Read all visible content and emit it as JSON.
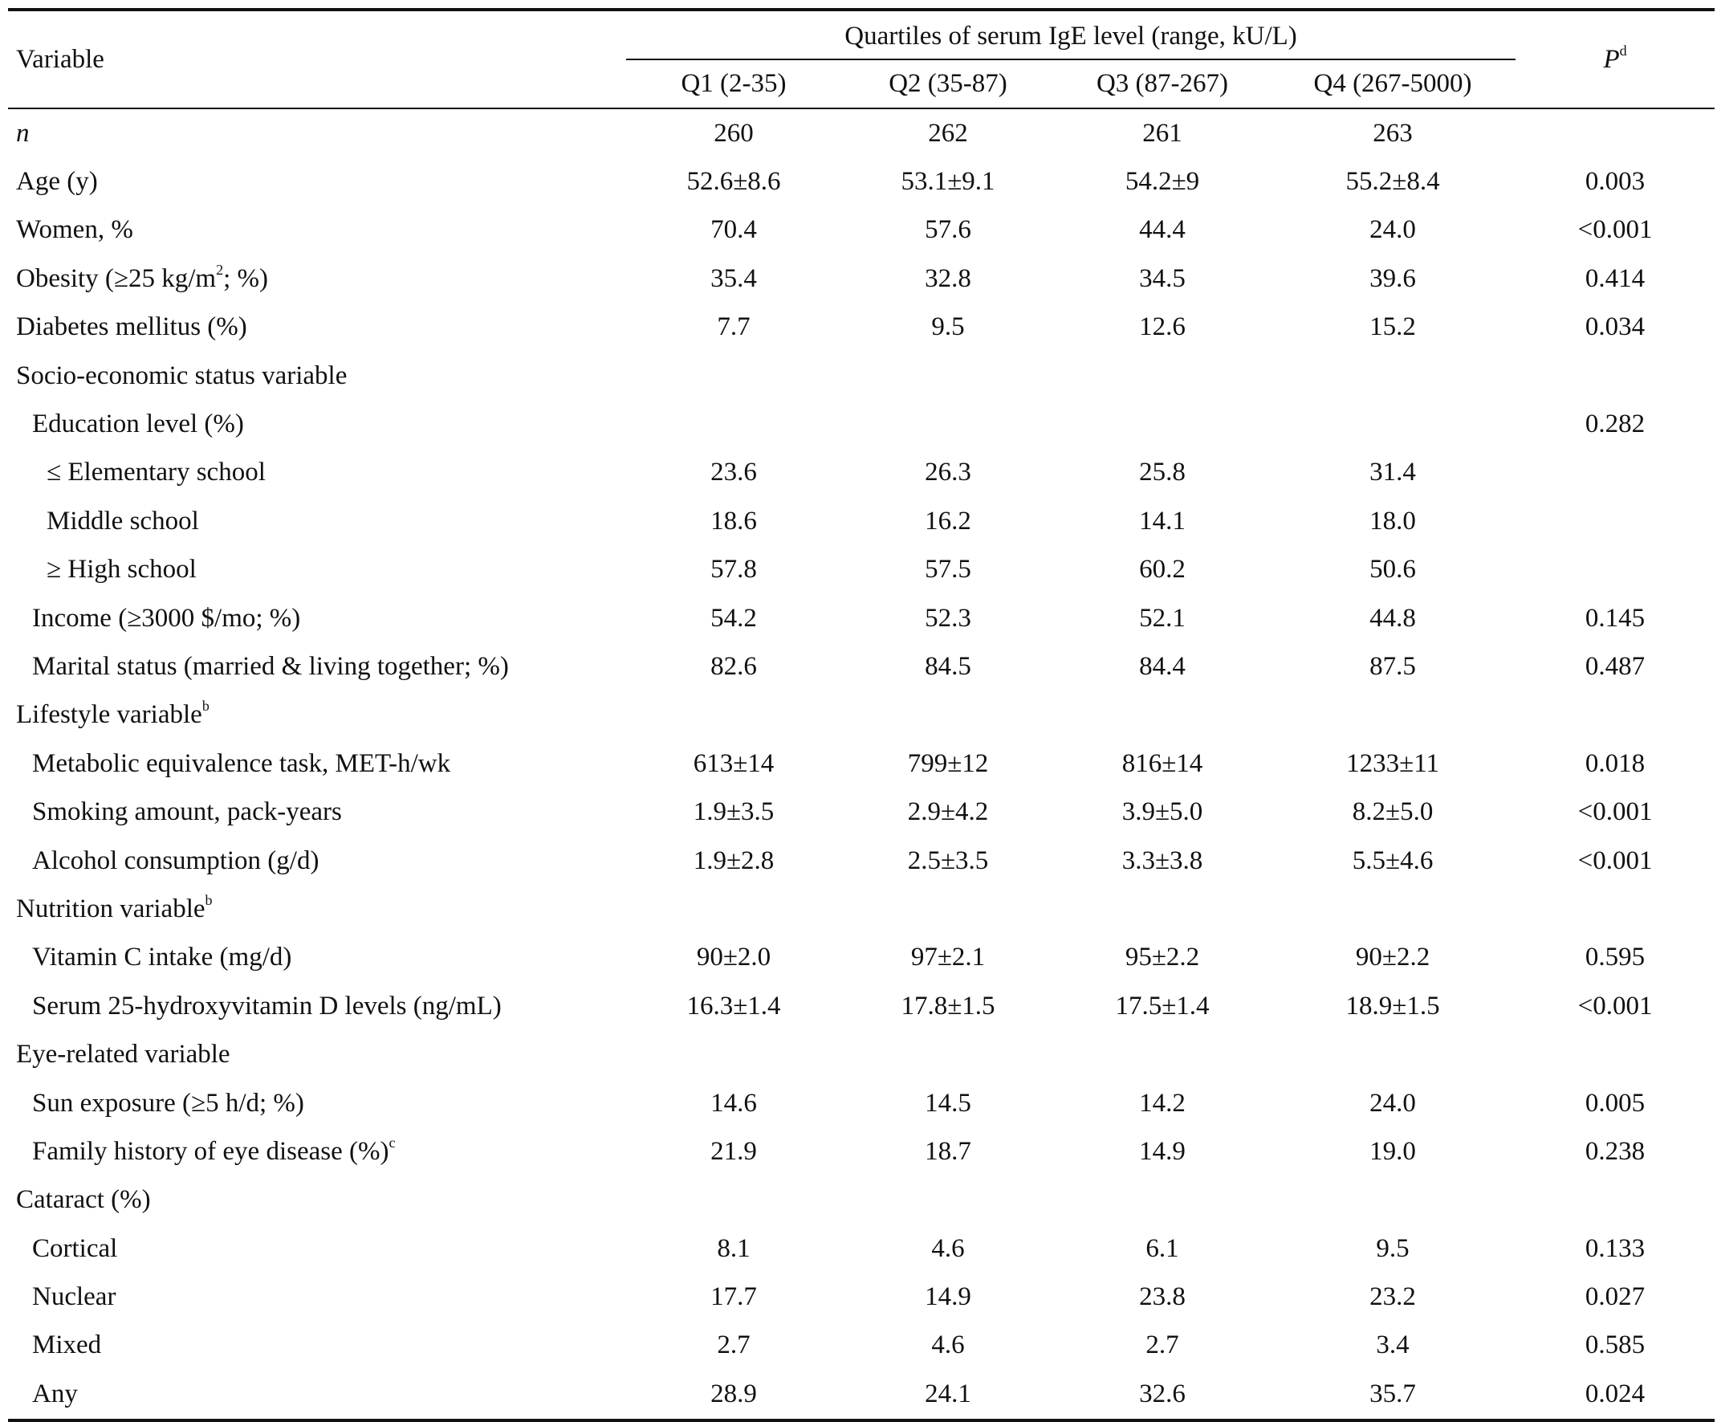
{
  "header": {
    "variable_label": "Variable",
    "quartiles_title": "Quartiles of serum IgE level (range, kU/L)",
    "columns": [
      "Q1 (2-35)",
      "Q2 (35-87)",
      "Q3 (87-267)",
      "Q4 (267-5000)"
    ],
    "p_label": "P",
    "p_sup": "d"
  },
  "rows": [
    {
      "label": "n",
      "sup": "",
      "values": [
        "260",
        "262",
        "261",
        "263"
      ],
      "p": ""
    },
    {
      "label": "Age (y)",
      "sup": "",
      "values": [
        "52.6±8.6",
        "53.1±9.1",
        "54.2±9",
        "55.2±8.4"
      ],
      "p": "0.003"
    },
    {
      "label": "Women, %",
      "sup": "",
      "values": [
        "70.4",
        "57.6",
        "44.4",
        "24.0"
      ],
      "p": "<0.001"
    },
    {
      "label_a": "Obesity (≥25 kg/m",
      "label_sup": "2",
      "label_b": "; %)",
      "values": [
        "35.4",
        "32.8",
        "34.5",
        "39.6"
      ],
      "p": "0.414"
    },
    {
      "label": "Diabetes mellitus (%)",
      "sup": "",
      "values": [
        "7.7",
        "9.5",
        "12.6",
        "15.2"
      ],
      "p": "0.034"
    },
    {
      "label": "Socio-economic status variable",
      "sup": "",
      "values": [
        "",
        "",
        "",
        ""
      ],
      "p": ""
    },
    {
      "label": "Education level (%)",
      "sup": "",
      "values": [
        "",
        "",
        "",
        ""
      ],
      "p": "0.282"
    },
    {
      "label": "≤ Elementary school",
      "sup": "",
      "values": [
        "23.6",
        "26.3",
        "25.8",
        "31.4"
      ],
      "p": ""
    },
    {
      "label": "Middle school",
      "sup": "",
      "values": [
        "18.6",
        "16.2",
        "14.1",
        "18.0"
      ],
      "p": ""
    },
    {
      "label": "≥ High school",
      "sup": "",
      "values": [
        "57.8",
        "57.5",
        "60.2",
        "50.6"
      ],
      "p": ""
    },
    {
      "label": "Income (≥3000 $/mo; %)",
      "sup": "",
      "values": [
        "54.2",
        "52.3",
        "52.1",
        "44.8"
      ],
      "p": "0.145"
    },
    {
      "label": "Marital status (married & living together; %)",
      "sup": "",
      "values": [
        "82.6",
        "84.5",
        "84.4",
        "87.5"
      ],
      "p": "0.487"
    },
    {
      "label": "Lifestyle variable",
      "sup": "b",
      "values": [
        "",
        "",
        "",
        ""
      ],
      "p": ""
    },
    {
      "label": "Metabolic equivalence task, MET-h/wk",
      "sup": "",
      "values": [
        "613±14",
        "799±12",
        "816±14",
        "1233±11"
      ],
      "p": "0.018"
    },
    {
      "label": "Smoking amount, pack-years",
      "sup": "",
      "values": [
        "1.9±3.5",
        "2.9±4.2",
        "3.9±5.0",
        "8.2±5.0"
      ],
      "p": "<0.001"
    },
    {
      "label": "Alcohol consumption (g/d)",
      "sup": "",
      "values": [
        "1.9±2.8",
        "2.5±3.5",
        "3.3±3.8",
        "5.5±4.6"
      ],
      "p": "<0.001"
    },
    {
      "label": "Nutrition variable",
      "sup": "b",
      "values": [
        "",
        "",
        "",
        ""
      ],
      "p": ""
    },
    {
      "label": "Vitamin C intake (mg/d)",
      "sup": "",
      "values": [
        "90±2.0",
        "97±2.1",
        "95±2.2",
        "90±2.2"
      ],
      "p": "0.595"
    },
    {
      "label": "Serum 25-hydroxyvitamin D levels (ng/mL)",
      "sup": "",
      "values": [
        "16.3±1.4",
        "17.8±1.5",
        "17.5±1.4",
        "18.9±1.5"
      ],
      "p": "<0.001"
    },
    {
      "label": "Eye-related variable",
      "sup": "",
      "values": [
        "",
        "",
        "",
        ""
      ],
      "p": ""
    },
    {
      "label": "Sun exposure (≥5 h/d; %)",
      "sup": "",
      "values": [
        "14.6",
        "14.5",
        "14.2",
        "24.0"
      ],
      "p": "0.005"
    },
    {
      "label": "Family history of eye disease (%)",
      "sup": "c",
      "values": [
        "21.9",
        "18.7",
        "14.9",
        "19.0"
      ],
      "p": "0.238"
    },
    {
      "label": "Cataract (%)",
      "sup": "",
      "values": [
        "",
        "",
        "",
        ""
      ],
      "p": ""
    },
    {
      "label": "Cortical",
      "sup": "",
      "values": [
        "8.1",
        "4.6",
        "6.1",
        "9.5"
      ],
      "p": "0.133"
    },
    {
      "label": "Nuclear",
      "sup": "",
      "values": [
        "17.7",
        "14.9",
        "23.8",
        "23.2"
      ],
      "p": "0.027"
    },
    {
      "label": "Mixed",
      "sup": "",
      "values": [
        "2.7",
        "4.6",
        "2.7",
        "3.4"
      ],
      "p": "0.585"
    },
    {
      "label": "Any",
      "sup": "",
      "values": [
        "28.9",
        "24.1",
        "32.6",
        "35.7"
      ],
      "p": "0.024"
    }
  ]
}
